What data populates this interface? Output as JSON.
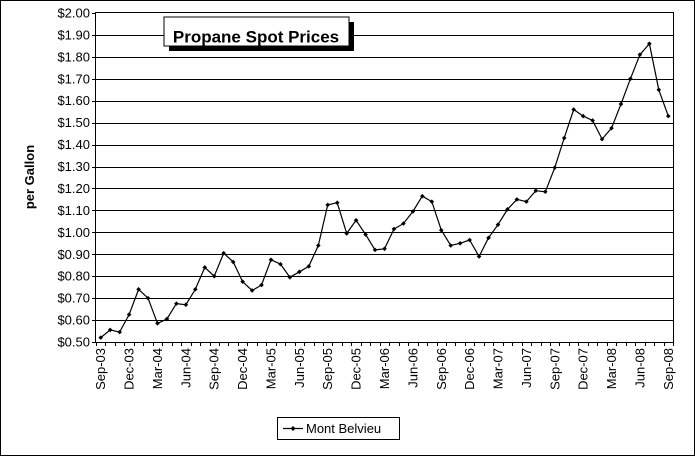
{
  "chart_data": {
    "type": "line",
    "title": "Propane Spot Prices",
    "ylabel": "per Gallon",
    "xlabel": "",
    "ylim": [
      0.5,
      2.0
    ],
    "y_ticks": [
      "$0.50",
      "$0.60",
      "$0.70",
      "$0.80",
      "$0.90",
      "$1.00",
      "$1.10",
      "$1.20",
      "$1.30",
      "$1.40",
      "$1.50",
      "$1.60",
      "$1.70",
      "$1.80",
      "$1.90",
      "$2.00"
    ],
    "x_tick_labels": [
      "Sep-03",
      "Dec-03",
      "Mar-04",
      "Jun-04",
      "Sep-04",
      "Dec-04",
      "Mar-05",
      "Jun-05",
      "Sep-05",
      "Dec-05",
      "Mar-06",
      "Jun-06",
      "Sep-06",
      "Dec-06",
      "Mar-07",
      "Jun-07",
      "Sep-07",
      "Dec-07",
      "Mar-08",
      "Jun-08",
      "Sep-08"
    ],
    "grid": true,
    "legend_position": "bottom",
    "line_color": "#000000",
    "series": [
      {
        "name": "Mont Belvieu",
        "x": [
          "Sep-03",
          "Oct-03",
          "Nov-03",
          "Dec-03",
          "Jan-04",
          "Feb-04",
          "Mar-04",
          "Apr-04",
          "May-04",
          "Jun-04",
          "Jul-04",
          "Aug-04",
          "Sep-04",
          "Oct-04",
          "Nov-04",
          "Dec-04",
          "Jan-05",
          "Feb-05",
          "Mar-05",
          "Apr-05",
          "May-05",
          "Jun-05",
          "Jul-05",
          "Aug-05",
          "Sep-05",
          "Oct-05",
          "Nov-05",
          "Dec-05",
          "Jan-06",
          "Feb-06",
          "Mar-06",
          "Apr-06",
          "May-06",
          "Jun-06",
          "Jul-06",
          "Aug-06",
          "Sep-06",
          "Oct-06",
          "Nov-06",
          "Dec-06",
          "Jan-07",
          "Feb-07",
          "Mar-07",
          "Apr-07",
          "May-07",
          "Jun-07",
          "Jul-07",
          "Aug-07",
          "Sep-07",
          "Oct-07",
          "Nov-07",
          "Dec-07",
          "Jan-08",
          "Feb-08",
          "Mar-08",
          "Apr-08",
          "May-08",
          "Jun-08",
          "Jul-08",
          "Aug-08",
          "Sep-08"
        ],
        "values": [
          0.52,
          0.555,
          0.545,
          0.625,
          0.74,
          0.7,
          0.585,
          0.605,
          0.675,
          0.67,
          0.74,
          0.84,
          0.8,
          0.905,
          0.865,
          0.775,
          0.735,
          0.76,
          0.875,
          0.855,
          0.795,
          0.82,
          0.845,
          0.94,
          1.125,
          1.135,
          0.995,
          1.055,
          0.99,
          0.92,
          0.925,
          1.015,
          1.04,
          1.095,
          1.165,
          1.14,
          1.01,
          0.94,
          0.95,
          0.965,
          0.89,
          0.975,
          1.035,
          1.105,
          1.15,
          1.14,
          1.19,
          1.185,
          1.295,
          1.43,
          1.56,
          1.53,
          1.51,
          1.425,
          1.475,
          1.585,
          1.7,
          1.81,
          1.86,
          1.65,
          1.53
        ]
      }
    ]
  }
}
